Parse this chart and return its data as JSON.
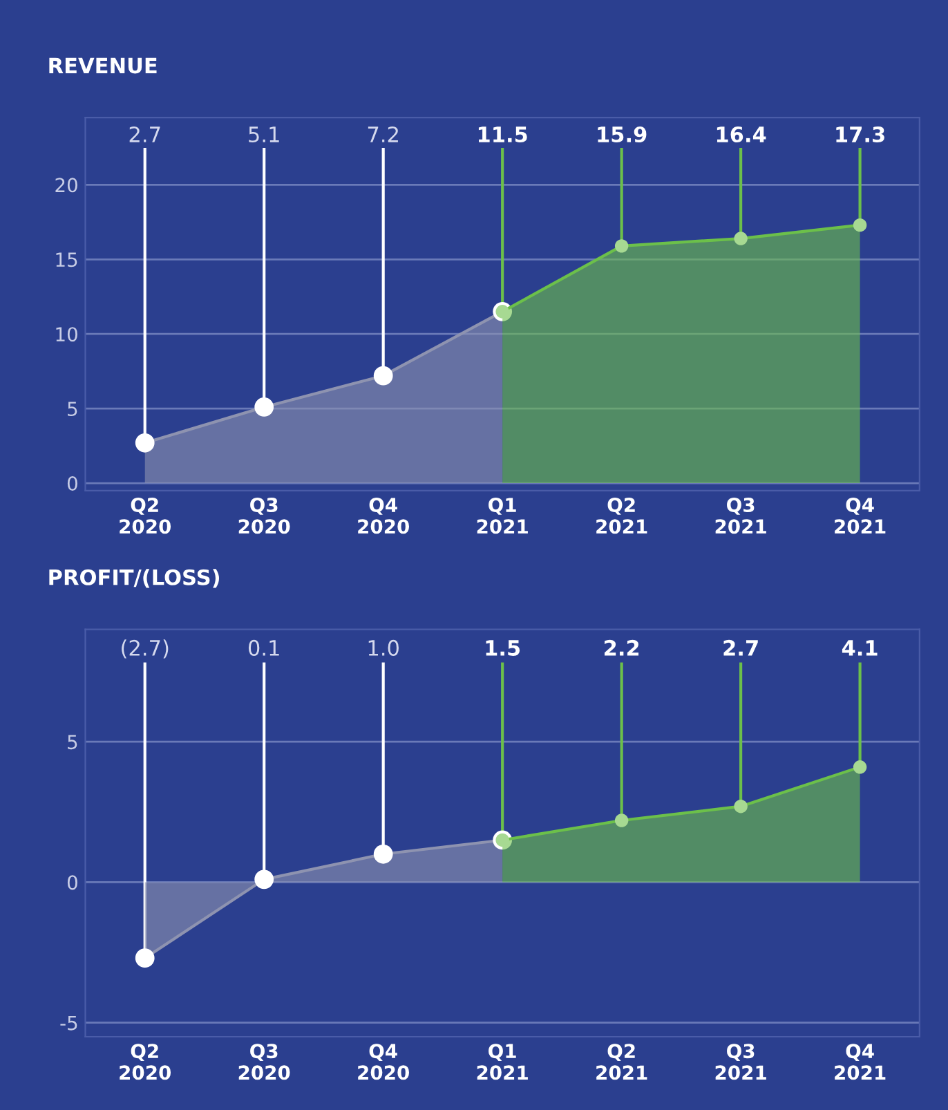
{
  "chart_data": [
    {
      "type": "area",
      "title": "REVENUE",
      "categories": [
        "Q2\n2020",
        "Q3\n2020",
        "Q4\n2020",
        "Q1\n2021",
        "Q2\n2021",
        "Q3\n2021",
        "Q4\n2021"
      ],
      "ylim": [
        -0.5,
        24.5
      ],
      "yticks": [
        0,
        5,
        10,
        15,
        20
      ],
      "grid": "y",
      "marker": "circle",
      "legend": false,
      "series": [
        {
          "color": "#8e93b0",
          "values": [
            2.7,
            5.1,
            7.2,
            11.5,
            null,
            null,
            null
          ],
          "value_labels": [
            "2.7",
            "5.1",
            "7.2",
            null,
            null,
            null,
            null
          ]
        },
        {
          "color": "#6cc04a",
          "values": [
            null,
            null,
            null,
            11.5,
            15.9,
            16.4,
            17.3
          ],
          "value_labels": [
            null,
            null,
            null,
            "11.5",
            "15.9",
            "16.4",
            "17.3"
          ]
        }
      ]
    },
    {
      "type": "area",
      "title": "PROFIT/(LOSS)",
      "categories": [
        "Q2\n2020",
        "Q3\n2020",
        "Q4\n2020",
        "Q1\n2021",
        "Q2\n2021",
        "Q3\n2021",
        "Q4\n2021"
      ],
      "ylim": [
        -5.5,
        9
      ],
      "yticks": [
        -5,
        0,
        5
      ],
      "grid": "y",
      "marker": "circle",
      "legend": false,
      "series": [
        {
          "color": "#8e93b0",
          "values": [
            -2.7,
            0.1,
            1.0,
            1.5,
            null,
            null,
            null
          ],
          "value_labels": [
            "(2.7)",
            "0.1",
            "1.0",
            null,
            null,
            null,
            null
          ]
        },
        {
          "color": "#6cc04a",
          "values": [
            null,
            null,
            null,
            1.5,
            2.2,
            2.7,
            4.1
          ],
          "value_labels": [
            null,
            null,
            null,
            "1.5",
            "2.2",
            "2.7",
            "4.1"
          ]
        }
      ]
    }
  ]
}
